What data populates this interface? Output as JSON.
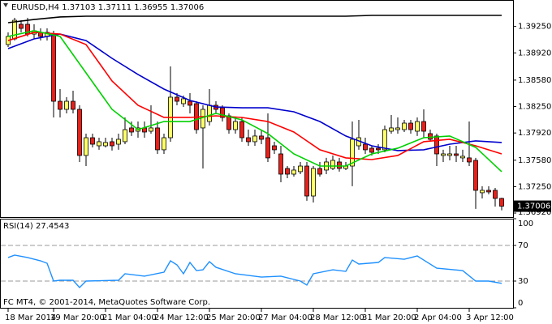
{
  "chart_data": [
    {
      "type": "candlestick",
      "title": "EURUSD,H4",
      "categories": [
        "18 Mar 2014",
        null,
        null,
        null,
        null,
        null,
        null,
        "19 Mar 20:00",
        null,
        null,
        null,
        null,
        null,
        null,
        null,
        "21 Mar 04:00",
        null,
        null,
        null,
        null,
        null,
        null,
        null,
        "24 Mar 12:00",
        null,
        null,
        null,
        null,
        null,
        null,
        null,
        "25 Mar 20:00",
        null,
        null,
        null,
        null,
        null,
        null,
        null,
        "27 Mar 04:00",
        null,
        null,
        null,
        null,
        null,
        null,
        null,
        "28 Mar 12:00",
        null,
        null,
        null,
        null,
        null,
        null,
        null,
        "31 Mar 20:00",
        null,
        null,
        null,
        null,
        null,
        null,
        null,
        "2 Apr 04:00",
        null,
        null,
        null,
        null,
        null,
        null,
        null,
        "3 Apr 12:00",
        null,
        null,
        null,
        null,
        null
      ],
      "open": [
        1.39024,
        1.39095,
        1.39277,
        1.39277,
        1.39155,
        1.39176,
        1.39125,
        1.39155,
        1.38316,
        1.38215,
        1.38316,
        1.38215,
        1.37639,
        1.37861,
        1.3776,
        1.3776,
        1.37811,
        1.3778,
        1.37811,
        1.37983,
        1.37942,
        1.37983,
        1.37942,
        1.37983,
        1.3771,
        1.37861,
        1.38367,
        1.38286,
        1.38316,
        1.38286,
        1.37983,
        1.38063,
        1.38266,
        1.38235,
        1.38134,
        1.37962,
        1.38063,
        1.37861,
        1.37811,
        1.37882,
        1.37861,
        1.3776,
        1.37659,
        1.37477,
        1.37406,
        1.37437,
        1.37507,
        1.37133,
        1.37477,
        1.37457,
        1.37477,
        1.37558,
        1.37477,
        1.37507,
        1.3776,
        1.3778,
        1.3773,
        1.3773,
        1.3771,
        1.37942,
        1.37962,
        1.37962,
        1.38043,
        1.37942,
        1.38063,
        1.37912,
        1.37882,
        1.37639,
        1.37639,
        1.37659,
        1.37609,
        1.37609,
        1.37578,
        1.37174,
        1.37204,
        1.37204,
        1.37103
      ],
      "high": [
        1.39176,
        1.39358,
        1.39327,
        1.39358,
        1.39277,
        1.39226,
        1.39226,
        1.39196,
        1.38468,
        1.38367,
        1.38448,
        1.38266,
        1.37912,
        1.37912,
        1.37861,
        1.37861,
        1.37861,
        1.37912,
        1.38114,
        1.38063,
        1.38063,
        1.38063,
        1.38266,
        1.38063,
        1.37912,
        1.38751,
        1.38417,
        1.38387,
        1.38417,
        1.38316,
        1.38266,
        1.38468,
        1.38316,
        1.38266,
        1.38165,
        1.38114,
        1.38114,
        1.37962,
        1.37962,
        1.37962,
        1.38165,
        1.37811,
        1.3776,
        1.37507,
        1.37507,
        1.37558,
        1.37558,
        1.37507,
        1.37558,
        1.37609,
        1.37639,
        1.37609,
        1.37558,
        1.38063,
        1.38084,
        1.37861,
        1.3776,
        1.3778,
        1.38013,
        1.38144,
        1.38114,
        1.38084,
        1.38084,
        1.38114,
        1.38215,
        1.37962,
        1.37912,
        1.3771,
        1.3776,
        1.3776,
        1.3771,
        1.38063,
        1.37609,
        1.37255,
        1.37255,
        1.37234,
        1.37111
      ],
      "low": [
        1.38994,
        1.39074,
        1.39176,
        1.39125,
        1.39095,
        1.39074,
        1.39074,
        1.38114,
        1.38114,
        1.38165,
        1.38165,
        1.37558,
        1.37507,
        1.3774,
        1.3771,
        1.3774,
        1.377,
        1.3771,
        1.3778,
        1.37882,
        1.37861,
        1.37861,
        1.37912,
        1.37659,
        1.37659,
        1.37811,
        1.38266,
        1.38245,
        1.38165,
        1.37912,
        1.37477,
        1.38013,
        1.38165,
        1.38063,
        1.37912,
        1.37912,
        1.37811,
        1.3776,
        1.3776,
        1.3778,
        1.37558,
        1.37659,
        1.37305,
        1.37356,
        1.37376,
        1.37406,
        1.37073,
        1.37052,
        1.37376,
        1.37406,
        1.37457,
        1.37437,
        1.37457,
        1.37255,
        1.3771,
        1.37659,
        1.37639,
        1.37659,
        1.37679,
        1.37912,
        1.37912,
        1.37932,
        1.37912,
        1.37882,
        1.37861,
        1.37811,
        1.37507,
        1.37558,
        1.37578,
        1.37558,
        1.37558,
        1.37507,
        1.36972,
        1.37103,
        1.37154,
        1.37002,
        1.36955
      ],
      "close": [
        1.39125,
        1.39327,
        1.39226,
        1.39155,
        1.39196,
        1.39125,
        1.39176,
        1.38316,
        1.38215,
        1.38316,
        1.38215,
        1.37639,
        1.37861,
        1.3778,
        1.37811,
        1.37801,
        1.3776,
        1.37841,
        1.37962,
        1.37932,
        1.37983,
        1.37932,
        1.37983,
        1.3771,
        1.37861,
        1.38367,
        1.38316,
        1.38347,
        1.38266,
        1.37962,
        1.38215,
        1.38266,
        1.38215,
        1.38114,
        1.37962,
        1.38063,
        1.37861,
        1.37811,
        1.37882,
        1.37841,
        1.37609,
        1.3771,
        1.37406,
        1.37406,
        1.37457,
        1.37507,
        1.37133,
        1.37477,
        1.37406,
        1.37558,
        1.37578,
        1.37477,
        1.37507,
        1.37841,
        1.37861,
        1.3771,
        1.37679,
        1.3771,
        1.37962,
        1.37983,
        1.37983,
        1.38043,
        1.37962,
        1.38063,
        1.37942,
        1.37841,
        1.37659,
        1.37659,
        1.37659,
        1.37639,
        1.37629,
        1.37558,
        1.37204,
        1.37204,
        1.37184,
        1.37103,
        1.37006
      ],
      "up_color": "#ffff66",
      "down_color": "#e8201a",
      "series": [
        {
          "color": "#000000",
          "x": [
            0,
            4,
            8,
            12,
            16,
            20,
            24,
            28,
            32,
            36,
            40,
            44,
            48,
            52,
            56,
            60,
            64,
            68,
            72,
            76
          ],
          "values": [
            1.39297,
            1.39337,
            1.39368,
            1.39378,
            1.39378,
            1.39378,
            1.39378,
            1.39378,
            1.39378,
            1.39378,
            1.39378,
            1.39378,
            1.39378,
            1.39378,
            1.39388,
            1.39388,
            1.39388,
            1.39388,
            1.39388,
            1.39388
          ]
        },
        {
          "color": "#0000cd",
          "x": [
            0,
            4,
            8,
            12,
            16,
            20,
            24,
            28,
            32,
            36,
            40,
            44,
            48,
            52,
            56,
            60,
            64,
            68,
            72,
            76
          ],
          "values": [
            1.38973,
            1.39095,
            1.39155,
            1.39074,
            1.38852,
            1.3865,
            1.38468,
            1.38326,
            1.38245,
            1.38235,
            1.38235,
            1.38185,
            1.38063,
            1.37882,
            1.3776,
            1.377,
            1.3771,
            1.3778,
            1.37821,
            1.37801
          ]
        },
        {
          "color": "#ff0000",
          "x": [
            0,
            4,
            8,
            12,
            16,
            20,
            24,
            28,
            32,
            36,
            40,
            44,
            48,
            52,
            56,
            60,
            64,
            68,
            72,
            76
          ],
          "values": [
            1.39074,
            1.39176,
            1.39155,
            1.39024,
            1.38569,
            1.38266,
            1.38114,
            1.38114,
            1.38134,
            1.38114,
            1.38063,
            1.37932,
            1.3771,
            1.37609,
            1.37588,
            1.37639,
            1.37811,
            1.37841,
            1.3776,
            1.37659
          ]
        },
        {
          "color": "#00d000",
          "x": [
            0,
            4,
            8,
            12,
            16,
            20,
            24,
            28,
            32,
            36,
            40,
            44,
            48,
            52,
            56,
            60,
            64,
            68,
            72,
            76
          ],
          "values": [
            1.39125,
            1.39196,
            1.39125,
            1.3867,
            1.38215,
            1.37962,
            1.38063,
            1.38063,
            1.38165,
            1.38084,
            1.37912,
            1.37659,
            1.37507,
            1.37507,
            1.37659,
            1.3773,
            1.37861,
            1.37882,
            1.3774,
            1.37437
          ]
        }
      ],
      "ylim": [
        1.3687,
        1.3956
      ],
      "yticks": [
        {
          "value": 1.3925,
          "label": "1.39250"
        },
        {
          "value": 1.3892,
          "label": "1.38920"
        },
        {
          "value": 1.3858,
          "label": "1.38580"
        },
        {
          "value": 1.3825,
          "label": "1.38250"
        },
        {
          "value": 1.3792,
          "label": "1.37920"
        },
        {
          "value": 1.3758,
          "label": "1.37580"
        },
        {
          "value": 1.3725,
          "label": "1.37250"
        },
        {
          "value": 1.3692,
          "label": "1.36920"
        }
      ]
    },
    {
      "type": "line",
      "title": "RSI(14)",
      "color": "#1e90ff",
      "x": [
        0,
        1,
        3,
        5,
        6,
        7,
        8,
        10,
        11,
        12,
        17,
        18,
        21,
        24,
        25,
        26,
        27,
        28,
        29,
        30,
        31,
        32,
        35,
        39,
        42,
        45,
        46,
        47,
        50,
        52,
        53,
        54,
        57,
        58,
        61,
        63,
        64,
        66,
        70,
        72,
        74,
        76
      ],
      "values": [
        56.4,
        59.1,
        56.4,
        52.7,
        50,
        30,
        30.9,
        30.9,
        22.7,
        30,
        30.9,
        38.2,
        35.5,
        40,
        52.7,
        48.2,
        38.2,
        50.9,
        41.8,
        42.7,
        51.8,
        45.5,
        38.2,
        34.5,
        35.5,
        30,
        25.5,
        38.2,
        42.7,
        40.9,
        53.6,
        49.1,
        50.9,
        56.4,
        54.5,
        58.2,
        53.6,
        44.5,
        41.8,
        30,
        30,
        27.4543
      ],
      "ylim": [
        0,
        100
      ],
      "yticks": [
        0,
        30,
        70,
        100
      ]
    }
  ],
  "footer": "FC MT4, © 2001-2014, MetaQuotes Software Corp."
}
